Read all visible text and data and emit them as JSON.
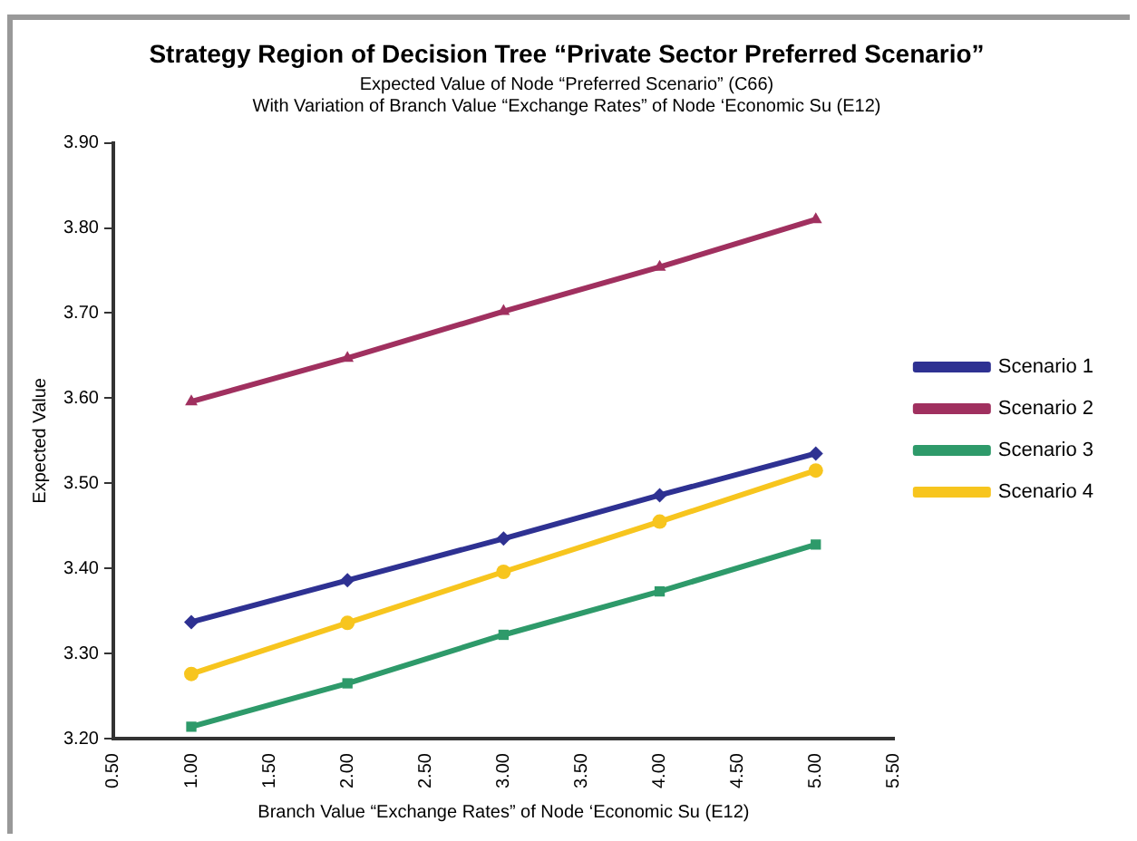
{
  "chart_data": {
    "type": "line",
    "title": "Strategy Region of Decision Tree “Private Sector Preferred Scenario”",
    "subtitle": "Expected Value of Node “Preferred Scenario” (C66)\nWith Variation of Branch Value “Exchange Rates” of Node ‘Economic Su (E12)",
    "xlabel": "Branch Value “Exchange Rates” of Node ‘Economic Su (E12)",
    "ylabel": "Expected Value",
    "x": [
      1,
      2,
      3,
      4,
      5
    ],
    "series": [
      {
        "name": "Scenario 1",
        "color": "#2e3192",
        "marker": "diamond",
        "values": [
          3.337,
          3.386,
          3.435,
          3.486,
          3.535
        ]
      },
      {
        "name": "Scenario 2",
        "color": "#a0305f",
        "marker": "triangle",
        "values": [
          3.596,
          3.647,
          3.702,
          3.754,
          3.81
        ]
      },
      {
        "name": "Scenario 3",
        "color": "#2e9a6a",
        "marker": "square",
        "values": [
          3.214,
          3.265,
          3.322,
          3.373,
          3.428
        ]
      },
      {
        "name": "Scenario 4",
        "color": "#f7c51e",
        "marker": "circle",
        "values": [
          3.276,
          3.336,
          3.396,
          3.455,
          3.515
        ]
      }
    ],
    "xlim": [
      0.5,
      5.5
    ],
    "xticks": [
      {
        "value": 0.5,
        "label": "0.50"
      },
      {
        "value": 1,
        "label": "1.00"
      },
      {
        "value": 1.5,
        "label": "1.50"
      },
      {
        "value": 2,
        "label": "2.00"
      },
      {
        "value": 2.5,
        "label": "2.50"
      },
      {
        "value": 3,
        "label": "3.00"
      },
      {
        "value": 3.5,
        "label": "3.50"
      },
      {
        "value": 4,
        "label": "4.00"
      },
      {
        "value": 4.5,
        "label": "4.50"
      },
      {
        "value": 5,
        "label": "5.00"
      },
      {
        "value": 5.5,
        "label": "5.50"
      }
    ],
    "ylim": [
      3.2,
      3.9
    ],
    "yticks": [
      {
        "value": 3.2,
        "label": "3.20"
      },
      {
        "value": 3.3,
        "label": "3.30"
      },
      {
        "value": 3.4,
        "label": "3.40"
      },
      {
        "value": 3.5,
        "label": "3.50"
      },
      {
        "value": 3.6,
        "label": "3.60"
      },
      {
        "value": 3.7,
        "label": "3.70"
      },
      {
        "value": 3.8,
        "label": "3.80"
      },
      {
        "value": 3.9,
        "label": "3.90"
      }
    ],
    "grid": false,
    "legend": "right"
  }
}
